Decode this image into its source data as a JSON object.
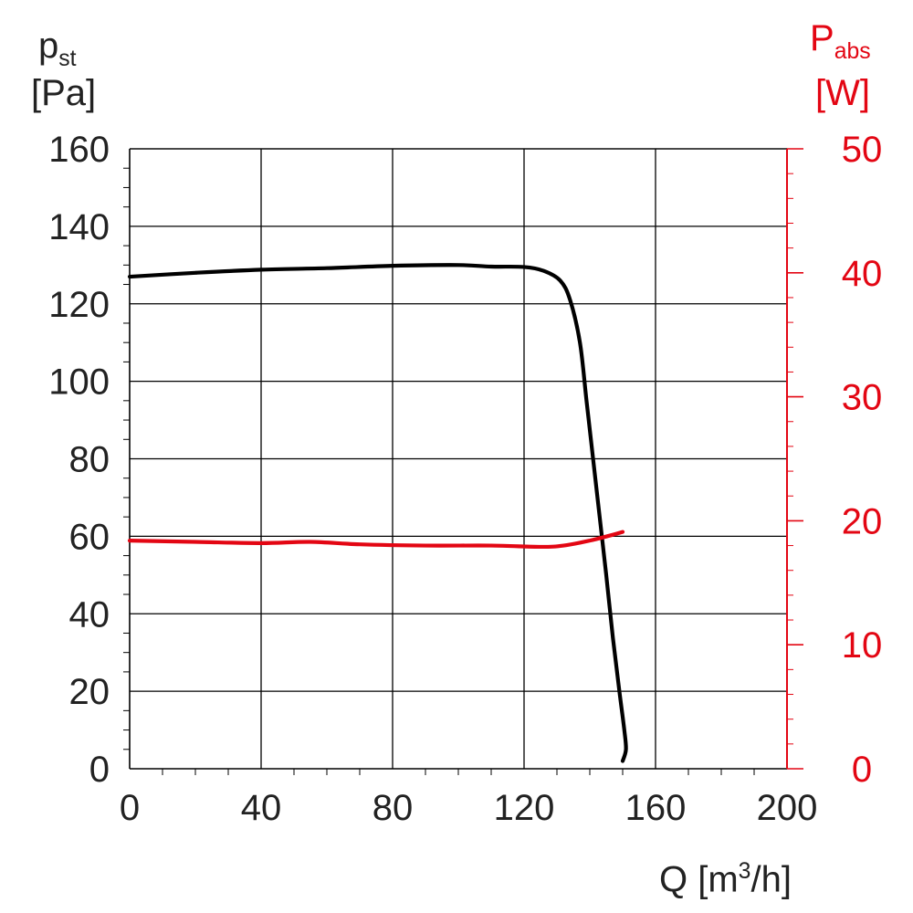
{
  "colors": {
    "pressure": "#000000",
    "power": "#e30613",
    "axis_text": "#222222",
    "grid": "#000000"
  },
  "axis_titles": {
    "left_symbol": "p",
    "left_sub": "st",
    "left_unit": "[Pa]",
    "right_symbol": "P",
    "right_sub": "abs",
    "right_unit": "[W]",
    "x_main": "Q [m",
    "x_sup": "3",
    "x_end": "/h]"
  },
  "chart_data": {
    "type": "line",
    "x": {
      "label": "Q [m³/h]",
      "lim": [
        0,
        200
      ],
      "ticks": [
        0,
        40,
        80,
        120,
        160,
        200
      ]
    },
    "y_left": {
      "label": "pst [Pa]",
      "lim": [
        0,
        160
      ],
      "ticks": [
        0,
        20,
        40,
        60,
        80,
        100,
        120,
        140,
        160
      ]
    },
    "y_right": {
      "label": "Pabs [W]",
      "lim": [
        0,
        50
      ],
      "ticks": [
        0,
        10,
        20,
        30,
        40,
        50
      ]
    },
    "grid": true,
    "series": [
      {
        "axis": "left",
        "color": "#000000",
        "points": [
          [
            0,
            127
          ],
          [
            20,
            128
          ],
          [
            40,
            128.8
          ],
          [
            60,
            129.2
          ],
          [
            80,
            129.8
          ],
          [
            100,
            130
          ],
          [
            110,
            129.6
          ],
          [
            120,
            129.5
          ],
          [
            126,
            128.5
          ],
          [
            131,
            126
          ],
          [
            134,
            121
          ],
          [
            137,
            110
          ],
          [
            139,
            95
          ],
          [
            141,
            80
          ],
          [
            143,
            65
          ],
          [
            145,
            50
          ],
          [
            147,
            34
          ],
          [
            149,
            20
          ],
          [
            150.5,
            10
          ],
          [
            151,
            5
          ],
          [
            150,
            2
          ]
        ]
      },
      {
        "axis": "right",
        "color": "#e30613",
        "points": [
          [
            0,
            18.4
          ],
          [
            20,
            18.3
          ],
          [
            40,
            18.2
          ],
          [
            55,
            18.3
          ],
          [
            70,
            18.1
          ],
          [
            90,
            18.0
          ],
          [
            110,
            18.0
          ],
          [
            125,
            17.9
          ],
          [
            132,
            18.0
          ],
          [
            140,
            18.4
          ],
          [
            146,
            18.8
          ],
          [
            150,
            19.1
          ]
        ]
      }
    ]
  }
}
